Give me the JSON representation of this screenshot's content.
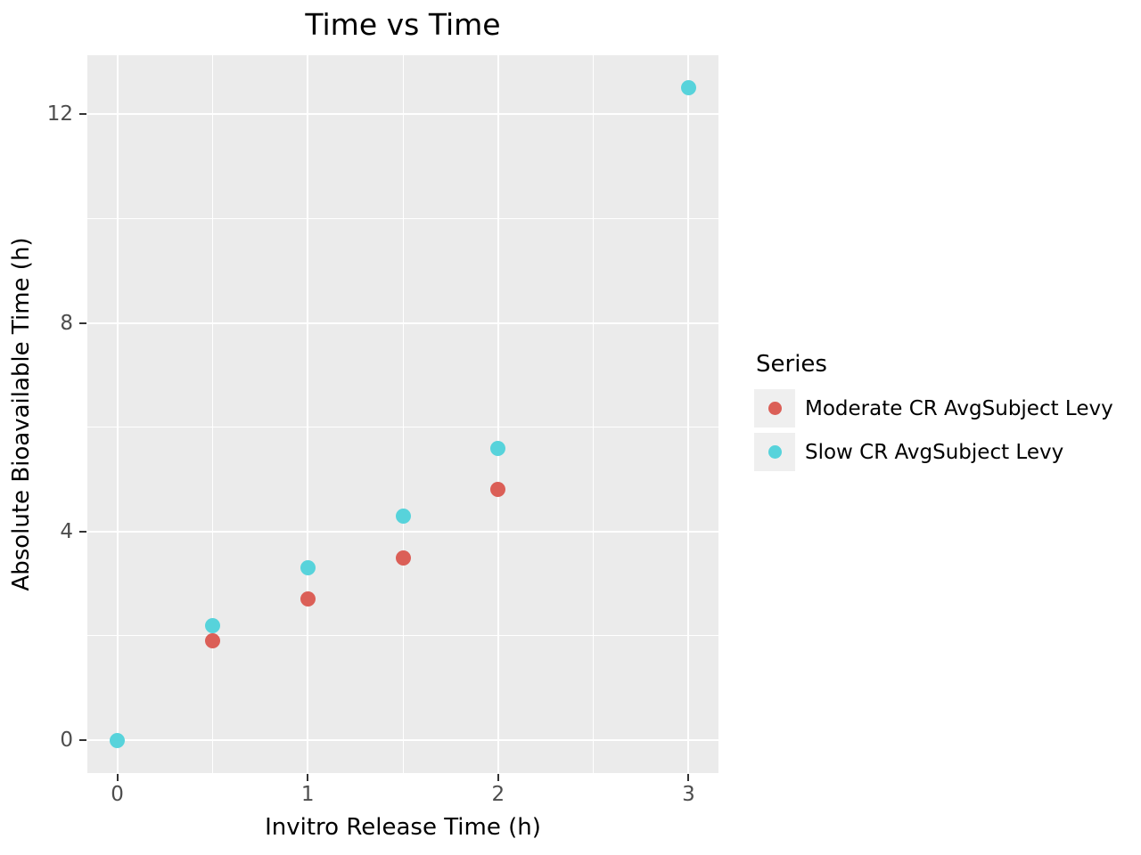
{
  "title": "Time vs Time",
  "axes": {
    "x_label": "Invitro Release Time (h)",
    "y_label": "Absolute Bioavailable Time (h)"
  },
  "legend": {
    "title": "Series",
    "items": [
      {
        "label": "Moderate CR AvgSubject Levy"
      },
      {
        "label": "Slow CR AvgSubject Levy"
      }
    ]
  },
  "chart_data": {
    "type": "scatter",
    "title": "Time vs Time",
    "xlabel": "Invitro Release Time (h)",
    "ylabel": "Absolute Bioavailable Time (h)",
    "xlim": [
      -0.157,
      3.157
    ],
    "ylim": [
      -0.631,
      13.131
    ],
    "grid": true,
    "legend_position": "right",
    "panel_bg": "#EBEBEB",
    "grid_color": "#FFFFFF",
    "x_ticks": [
      {
        "v": 0,
        "label": "0"
      },
      {
        "v": 1,
        "label": "1"
      },
      {
        "v": 2,
        "label": "2"
      },
      {
        "v": 3,
        "label": "3"
      }
    ],
    "y_ticks": [
      {
        "v": 0,
        "label": "0"
      },
      {
        "v": 4,
        "label": "4"
      },
      {
        "v": 8,
        "label": "8"
      },
      {
        "v": 12,
        "label": "12"
      }
    ],
    "x_minor_ticks": [
      0.5,
      1.5,
      2.5
    ],
    "y_minor_ticks": [
      2,
      6,
      10
    ],
    "series": [
      {
        "key": "moderate",
        "name": "Moderate CR AvgSubject Levy",
        "color": "#DB5F57",
        "points": [
          [
            0.5,
            1.9
          ],
          [
            1,
            2.7
          ],
          [
            1.5,
            3.5
          ],
          [
            2,
            4.8
          ]
        ]
      },
      {
        "key": "slow",
        "name": "Slow CR AvgSubject Levy",
        "color": "#57D3DB",
        "points": [
          [
            0,
            0
          ],
          [
            0.5,
            2.2
          ],
          [
            1,
            3.3
          ],
          [
            1.5,
            4.3
          ],
          [
            2,
            5.6
          ],
          [
            3,
            12.5
          ]
        ]
      }
    ]
  },
  "style": {
    "tick_color": "#333333",
    "tick_label_color": "#4D4D4D",
    "legend_key_bg": "#EFEFEF"
  }
}
